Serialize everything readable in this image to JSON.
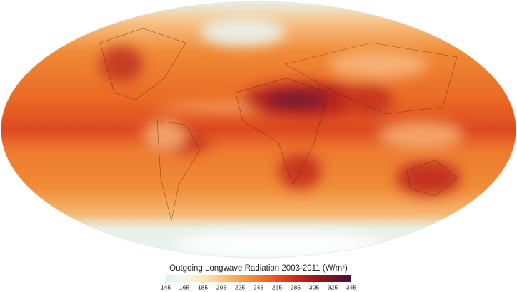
{
  "map": {
    "title": "Outgoing Longwave Radiation 2003-2011 (W/m²)",
    "colorbar": {
      "range": [
        145,
        345
      ],
      "ticks": [
        145,
        165,
        185,
        205,
        225,
        245,
        265,
        285,
        305,
        325,
        345
      ],
      "colors": [
        "#dff2f3",
        "#f3f6ea",
        "#fbe9b8",
        "#f9c77e",
        "#f6a14f",
        "#f07b2e",
        "#e2531f",
        "#c92b1c",
        "#a0161f",
        "#741229",
        "#4d0c3b"
      ]
    }
  }
}
